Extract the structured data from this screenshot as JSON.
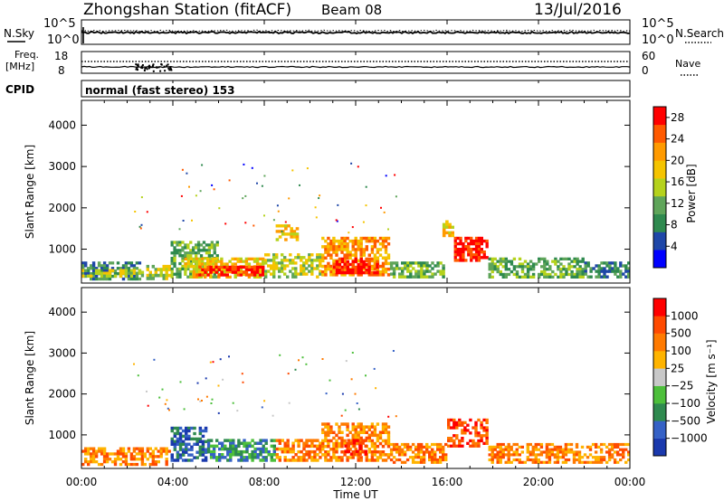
{
  "header": {
    "station": "Zhongshan Station (fitACF)",
    "beam": "Beam 08",
    "date": "13/Jul/2016"
  },
  "panels": {
    "nsky_label": "N.Sky",
    "nsearch_label": "N.Search",
    "nsky_top": "10^5",
    "nsky_bottom": "10^0",
    "nsearch_top": "10^5",
    "nsearch_bottom": "10^0",
    "freq_label": "Freq.",
    "freq_unit": "[MHz]",
    "freq_top": "18",
    "freq_bottom": "8",
    "nave_label": "Nave",
    "nave_top": "60",
    "nave_bottom": "0",
    "cpid_label": "CPID",
    "cpid_text": "normal (fast stereo) 153"
  },
  "colors": {
    "power_scale": [
      "#0000ff",
      "#1f47a8",
      "#2f8a4f",
      "#5fa55a",
      "#b5d21c",
      "#f5c400",
      "#ff9a00",
      "#ff5a00",
      "#ff0000"
    ],
    "velocity_scale": [
      "#1a39ad",
      "#3561c6",
      "#2f8a4f",
      "#4dbf3b",
      "#c8c8c8",
      "#ffb400",
      "#ff7a00",
      "#ff4a00",
      "#ff0000"
    ]
  },
  "chart_data": [
    {
      "type": "heatmap",
      "panel": "power",
      "xlabel": "Time UT",
      "ylabel": "Slant Range [km]",
      "x_ticks": [
        "00:00",
        "04:00",
        "08:00",
        "12:00",
        "16:00",
        "20:00",
        "00:00"
      ],
      "x_range_hours": [
        0,
        24
      ],
      "y_ticks": [
        1000,
        2000,
        3000,
        4000
      ],
      "y_range_km": [
        180,
        4600
      ],
      "colorbar": {
        "label": "Power [dB]",
        "ticks": [
          4,
          8,
          12,
          16,
          20,
          24,
          28
        ],
        "range": [
          0,
          30
        ]
      },
      "series": [
        {
          "t0": 0.0,
          "t1": 2.6,
          "r0": 250,
          "r1": 700,
          "level": 2
        },
        {
          "t0": 0.0,
          "t1": 2.6,
          "r0": 320,
          "r1": 520,
          "level": 4
        },
        {
          "t0": 2.6,
          "t1": 3.9,
          "r0": 260,
          "r1": 620,
          "level": 4
        },
        {
          "t0": 3.9,
          "t1": 6.0,
          "r0": 300,
          "r1": 1200,
          "level": 3
        },
        {
          "t0": 4.5,
          "t1": 8.0,
          "r0": 300,
          "r1": 800,
          "level": 5
        },
        {
          "t0": 5.0,
          "t1": 8.0,
          "r0": 350,
          "r1": 600,
          "level": 8
        },
        {
          "t0": 8.0,
          "t1": 10.5,
          "r0": 300,
          "r1": 900,
          "level": 4
        },
        {
          "t0": 8.5,
          "t1": 9.5,
          "r0": 1200,
          "r1": 1600,
          "level": 5
        },
        {
          "t0": 10.5,
          "t1": 13.5,
          "r0": 350,
          "r1": 1300,
          "level": 6
        },
        {
          "t0": 11.0,
          "t1": 13.0,
          "r0": 400,
          "r1": 800,
          "level": 8
        },
        {
          "t0": 13.5,
          "t1": 15.9,
          "r0": 300,
          "r1": 700,
          "level": 3
        },
        {
          "t0": 15.8,
          "t1": 16.3,
          "r0": 1300,
          "r1": 1700,
          "level": 5
        },
        {
          "t0": 16.3,
          "t1": 17.8,
          "r0": 700,
          "r1": 1300,
          "level": 8
        },
        {
          "t0": 17.8,
          "t1": 22.0,
          "r0": 300,
          "r1": 800,
          "level": 3
        },
        {
          "t0": 22.0,
          "t1": 24.0,
          "r0": 300,
          "r1": 700,
          "level": 2
        }
      ]
    },
    {
      "type": "heatmap",
      "panel": "velocity",
      "xlabel": "Time UT",
      "ylabel": "Slant Range [km]",
      "x_ticks": [
        "00:00",
        "04:00",
        "08:00",
        "12:00",
        "16:00",
        "20:00",
        "00:00"
      ],
      "x_range_hours": [
        0,
        24
      ],
      "y_ticks": [
        1000,
        2000,
        3000,
        4000
      ],
      "y_range_km": [
        180,
        4600
      ],
      "colorbar": {
        "label": "Velocity [m s⁻¹]",
        "ticks": [
          "1000",
          "500",
          "100",
          "25",
          "−25",
          "−100",
          "−500",
          "−1000"
        ]
      },
      "series": [
        {
          "t0": 0.0,
          "t1": 3.9,
          "r0": 250,
          "r1": 700,
          "level": 6
        },
        {
          "t0": 3.9,
          "t1": 5.5,
          "r0": 350,
          "r1": 1200,
          "level": 1
        },
        {
          "t0": 5.5,
          "t1": 8.5,
          "r0": 350,
          "r1": 900,
          "level": 2
        },
        {
          "t0": 8.5,
          "t1": 10.5,
          "r0": 350,
          "r1": 900,
          "level": 6
        },
        {
          "t0": 10.5,
          "t1": 13.5,
          "r0": 350,
          "r1": 1300,
          "level": 6
        },
        {
          "t0": 11.5,
          "t1": 12.5,
          "r0": 500,
          "r1": 900,
          "level": 8
        },
        {
          "t0": 13.5,
          "t1": 16.0,
          "r0": 300,
          "r1": 800,
          "level": 6
        },
        {
          "t0": 16.0,
          "t1": 17.8,
          "r0": 700,
          "r1": 1400,
          "level": 7
        },
        {
          "t0": 17.8,
          "t1": 24.0,
          "r0": 300,
          "r1": 800,
          "level": 6
        }
      ]
    }
  ]
}
